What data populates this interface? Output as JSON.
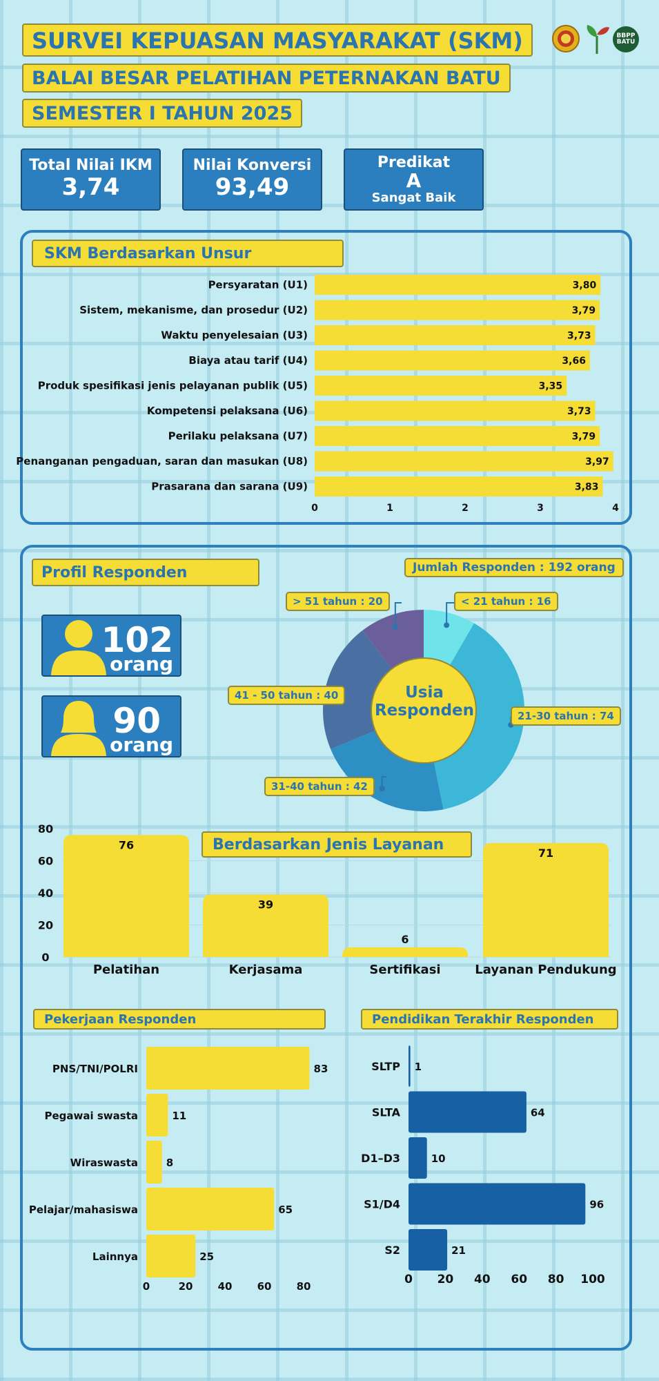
{
  "header": {
    "title": "SURVEI KEPUASAN MASYARAKAT (SKM)",
    "subtitle": "BALAI BESAR PELATIHAN PETERNAKAN BATU",
    "period": "SEMESTER I TAHUN 2025",
    "logo_text": "BBPP BATU"
  },
  "stats": {
    "ikm_label": "Total Nilai IKM",
    "ikm_value": "3,74",
    "konversi_label": "Nilai Konversi",
    "konversi_value": "93,49",
    "predikat_label": "Predikat",
    "predikat_value": "A",
    "predikat_desc": "Sangat Baik"
  },
  "profil": {
    "title": "Profil Responden",
    "total": "Jumlah Responden : 192 orang",
    "male_count": "102",
    "female_count": "90",
    "unit": "orang",
    "donut_center_1": "Usia",
    "donut_center_2": "Responden"
  },
  "colors": {
    "yellow": "#f5dd36",
    "blue": "#2b7fbe",
    "dark_blue": "#1660a3",
    "panel_border": "#2e7fbd",
    "age": [
      "#6fe3ea",
      "#3db7d8",
      "#2d8fc4",
      "#4a6fa3",
      "#6a5f9b"
    ]
  },
  "chart_data": [
    {
      "type": "bar",
      "orientation": "horizontal",
      "title": "SKM Berdasarkan Unsur",
      "categories": [
        "Persyaratan (U1)",
        "Sistem, mekanisme, dan prosedur (U2)",
        "Waktu penyelesaian (U3)",
        "Biaya atau tarif (U4)",
        "Produk spesifikasi jenis pelayanan publik (U5)",
        "Kompetensi pelaksana (U6)",
        "Perilaku pelaksana (U7)",
        "Penanganan pengaduan, saran dan masukan (U8)",
        "Prasarana dan sarana (U9)"
      ],
      "values": [
        3.8,
        3.79,
        3.73,
        3.66,
        3.35,
        3.73,
        3.79,
        3.97,
        3.83
      ],
      "value_labels": [
        "3,80",
        "3,79",
        "3,73",
        "3,66",
        "3,35",
        "3,73",
        "3,79",
        "3,97",
        "3,83"
      ],
      "xlim": [
        0,
        4
      ],
      "xticks": [
        "0",
        "1",
        "2",
        "3",
        "4"
      ]
    },
    {
      "type": "pie",
      "variant": "donut",
      "slices": [
        {
          "label": "< 21 tahun : 16",
          "value": 16
        },
        {
          "label": "21-30 tahun : 74",
          "value": 74
        },
        {
          "label": "31-40 tahun : 42",
          "value": 42
        },
        {
          "label": "41 - 50 tahun : 40",
          "value": 40
        },
        {
          "label": "> 51 tahun : 20",
          "value": 20
        }
      ]
    },
    {
      "type": "bar",
      "title": "Berdasarkan Jenis Layanan",
      "categories": [
        "Pelatihan",
        "Kerjasama",
        "Sertifikasi",
        "Layanan Pendukung"
      ],
      "values": [
        76,
        39,
        6,
        71
      ],
      "ylim": [
        0,
        80
      ],
      "yticks": [
        "80",
        "60",
        "40",
        "20",
        "0"
      ]
    },
    {
      "type": "bar",
      "orientation": "horizontal",
      "title": "Pekerjaan Responden",
      "categories": [
        "PNS/TNI/POLRI",
        "Pegawai swasta",
        "Wiraswasta",
        "Pelajar/mahasiswa",
        "Lainnya"
      ],
      "values": [
        83,
        11,
        8,
        65,
        25
      ],
      "xlim": [
        0,
        100
      ],
      "xticks": [
        "0",
        "20",
        "40",
        "60",
        "80",
        "100"
      ]
    },
    {
      "type": "bar",
      "orientation": "horizontal",
      "title": "Pendidikan Terakhir Responden",
      "categories": [
        "SLTP",
        "SLTA",
        "D1–D3",
        "S1/D4",
        "S2"
      ],
      "values": [
        1,
        64,
        10,
        96,
        21
      ],
      "xlim": [
        0,
        100
      ],
      "xticks": [
        "0",
        "20",
        "40",
        "60",
        "80",
        "100"
      ]
    }
  ]
}
